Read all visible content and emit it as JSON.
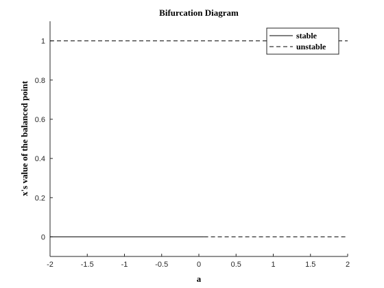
{
  "chart_data": {
    "type": "line",
    "title": "Bifurcation Diagram",
    "xlabel": "a",
    "ylabel": "x's value of the balanced point",
    "xlim": [
      -2,
      2
    ],
    "ylim": [
      -0.1,
      1.1
    ],
    "xticks": [
      -2,
      -1.5,
      -1,
      -0.5,
      0,
      0.5,
      1,
      1.5,
      2
    ],
    "yticks": [
      0,
      0.2,
      0.4,
      0.6,
      0.8,
      1
    ],
    "xtick_labels": [
      "-2",
      "-1.5",
      "-1",
      "-0.5",
      "0",
      "0.5",
      "1",
      "1.5",
      "2"
    ],
    "ytick_labels": [
      "0",
      "0.2",
      "0.4",
      "0.6",
      "0.8",
      "1"
    ],
    "legend_position": "top-right",
    "grid": false,
    "series": [
      {
        "name": "stable",
        "style": "solid",
        "color": "#000000",
        "segments": [
          [
            [
              -2,
              0
            ],
            [
              0.07,
              0
            ]
          ]
        ]
      },
      {
        "name": "unstable",
        "style": "dashed",
        "color": "#000000",
        "segments": [
          [
            [
              0.07,
              0
            ],
            [
              2,
              0
            ]
          ],
          [
            [
              -2,
              1
            ],
            [
              2,
              1
            ]
          ]
        ]
      }
    ]
  }
}
